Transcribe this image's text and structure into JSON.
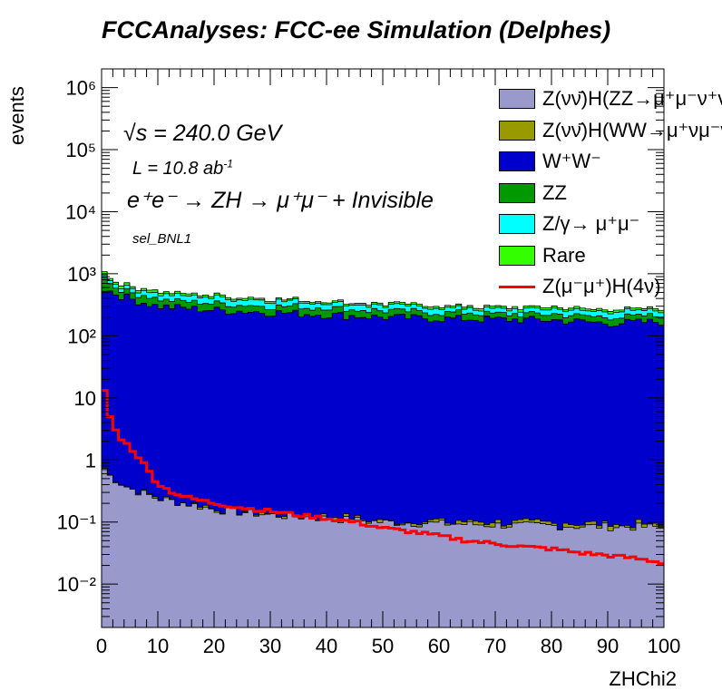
{
  "title": "FCCAnalyses: FCC-ee Simulation (Delphes)",
  "annotations": {
    "energy": "√s = 240.0 GeV",
    "lumi_prefix": "L = 10.8 ab",
    "lumi_exp": "-1",
    "process": "e⁺e⁻ → ZH → μ⁺μ⁻ + Invisible",
    "selection": "sel_BNL1"
  },
  "chart_data": {
    "type": "stacked-histogram",
    "title": "FCCAnalyses: FCC-ee Simulation (Delphes)",
    "xlabel": "ZHChi2",
    "ylabel": "events",
    "xlim": [
      0,
      100
    ],
    "ylim": [
      0.002,
      2000000
    ],
    "yscale": "log",
    "x_ticks": [
      "0",
      "10",
      "20",
      "30",
      "40",
      "50",
      "60",
      "70",
      "80",
      "90",
      "100"
    ],
    "y_ticks": [
      "10⁻²",
      "10⁻¹",
      "1",
      "10",
      "10²",
      "10³",
      "10⁴",
      "10⁵",
      "10⁶"
    ],
    "y_tick_values": [
      0.01,
      0.1,
      1,
      10,
      100,
      1000,
      10000,
      100000,
      1000000
    ],
    "legend_position": "top-right",
    "bin_width": 1,
    "series": [
      {
        "name": "Z(νν̄)H(ZZ→μ⁺μ⁻ν⁺ν⁻)",
        "color": "#9999cc",
        "anchors": [
          [
            0,
            0.9
          ],
          [
            1,
            0.6
          ],
          [
            3,
            0.45
          ],
          [
            5,
            0.35
          ],
          [
            8,
            0.28
          ],
          [
            10,
            0.24
          ],
          [
            15,
            0.2
          ],
          [
            20,
            0.16
          ],
          [
            30,
            0.13
          ],
          [
            40,
            0.115
          ],
          [
            50,
            0.1
          ],
          [
            60,
            0.095
          ],
          [
            70,
            0.09
          ],
          [
            80,
            0.087
          ],
          [
            90,
            0.085
          ],
          [
            100,
            0.083
          ]
        ]
      },
      {
        "name": "Z(νν̄)H(WW→μ⁺νμ⁻ν̄)",
        "color": "#999900",
        "anchors": [
          [
            0,
            0.006
          ],
          [
            100,
            0.006
          ]
        ]
      },
      {
        "name": "W⁺W⁻",
        "color": "#0000cc",
        "anchors": [
          [
            0,
            600
          ],
          [
            2,
            500
          ],
          [
            5,
            400
          ],
          [
            10,
            300
          ],
          [
            20,
            260
          ],
          [
            30,
            240
          ],
          [
            40,
            220
          ],
          [
            50,
            200
          ],
          [
            60,
            190
          ],
          [
            70,
            185
          ],
          [
            80,
            180
          ],
          [
            90,
            160
          ],
          [
            100,
            170
          ]
        ]
      },
      {
        "name": "ZZ",
        "color": "#009900",
        "anchors": [
          [
            0,
            500
          ],
          [
            1,
            200
          ],
          [
            2,
            150
          ],
          [
            5,
            110
          ],
          [
            10,
            90
          ],
          [
            20,
            75
          ],
          [
            30,
            65
          ],
          [
            40,
            60
          ],
          [
            50,
            55
          ],
          [
            60,
            50
          ],
          [
            70,
            45
          ],
          [
            80,
            42
          ],
          [
            90,
            40
          ],
          [
            100,
            42
          ]
        ]
      },
      {
        "name": "Z/γ→ μ⁺μ⁻",
        "color": "#00ffff",
        "anchors": [
          [
            0,
            100
          ],
          [
            2,
            80
          ],
          [
            5,
            90
          ],
          [
            10,
            90
          ],
          [
            20,
            80
          ],
          [
            30,
            70
          ],
          [
            40,
            60
          ],
          [
            50,
            55
          ],
          [
            60,
            50
          ],
          [
            70,
            45
          ],
          [
            80,
            45
          ],
          [
            90,
            45
          ],
          [
            100,
            45
          ]
        ]
      },
      {
        "name": "Rare",
        "color": "#33ff00",
        "anchors": [
          [
            0,
            200
          ],
          [
            1,
            80
          ],
          [
            2,
            60
          ],
          [
            5,
            50
          ],
          [
            10,
            40
          ],
          [
            20,
            30
          ],
          [
            30,
            25
          ],
          [
            40,
            22
          ],
          [
            50,
            21
          ],
          [
            60,
            21
          ],
          [
            70,
            20
          ],
          [
            80,
            20
          ],
          [
            90,
            20
          ],
          [
            100,
            20
          ]
        ]
      }
    ],
    "signal": {
      "name": "Z(μ⁻μ⁺)H(4ν)",
      "color": "#ff0000",
      "anchors": [
        [
          0,
          25
        ],
        [
          1,
          7
        ],
        [
          2,
          3.5
        ],
        [
          3,
          2.5
        ],
        [
          4,
          2
        ],
        [
          5,
          1.6
        ],
        [
          6,
          1.3
        ],
        [
          7,
          1.0
        ],
        [
          8,
          0.75
        ],
        [
          9,
          0.55
        ],
        [
          10,
          0.42
        ],
        [
          12,
          0.32
        ],
        [
          14,
          0.27
        ],
        [
          16,
          0.24
        ],
        [
          18,
          0.22
        ],
        [
          20,
          0.2
        ],
        [
          25,
          0.17
        ],
        [
          30,
          0.15
        ],
        [
          35,
          0.13
        ],
        [
          40,
          0.115
        ],
        [
          45,
          0.1
        ],
        [
          50,
          0.08
        ],
        [
          55,
          0.07
        ],
        [
          60,
          0.06
        ],
        [
          65,
          0.05
        ],
        [
          70,
          0.045
        ],
        [
          75,
          0.04
        ],
        [
          80,
          0.037
        ],
        [
          85,
          0.032
        ],
        [
          90,
          0.029
        ],
        [
          95,
          0.026
        ],
        [
          100,
          0.022
        ]
      ]
    }
  }
}
